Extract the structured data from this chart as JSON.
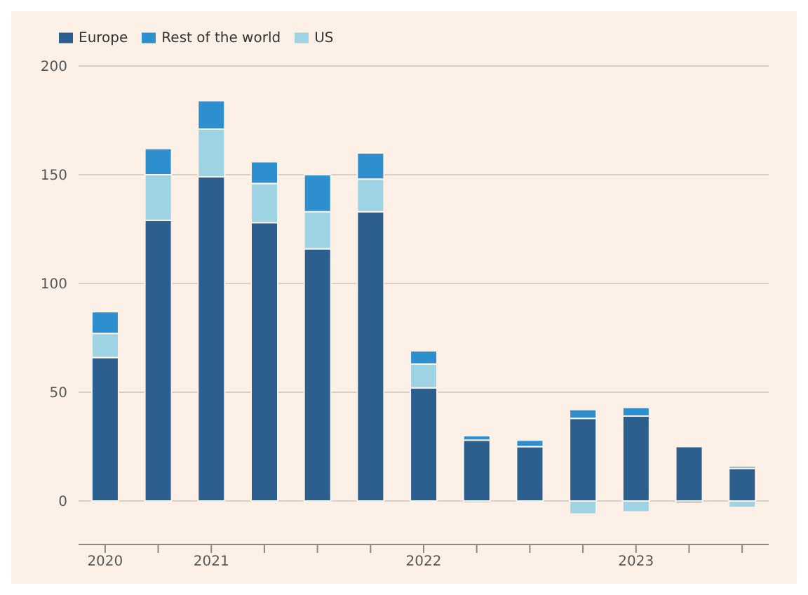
{
  "chart_data": {
    "type": "bar",
    "stacked": true,
    "categories": [
      "2020",
      null,
      "2021",
      null,
      null,
      null,
      "2022",
      null,
      null,
      null,
      "2023",
      null,
      null
    ],
    "series": [
      {
        "name": "Europe",
        "color": "#2d5f8e",
        "values": [
          66,
          129,
          149,
          128,
          116,
          133,
          52,
          28,
          25,
          38,
          39,
          25,
          15
        ]
      },
      {
        "name": "US",
        "color": "#9dd3e3",
        "values": [
          11,
          21,
          22,
          18,
          17,
          15,
          11,
          -1,
          0,
          -6,
          -5,
          0,
          -3
        ]
      },
      {
        "name": "Rest of the world",
        "color": "#2e8fcf",
        "values": [
          10,
          12,
          13,
          10,
          17,
          12,
          6,
          2,
          3,
          4,
          4,
          -1,
          1
        ]
      }
    ],
    "ylim": [
      -20,
      200
    ],
    "yticks": [
      0,
      50,
      100,
      150,
      200
    ],
    "grid": "y",
    "legend": "top left"
  }
}
